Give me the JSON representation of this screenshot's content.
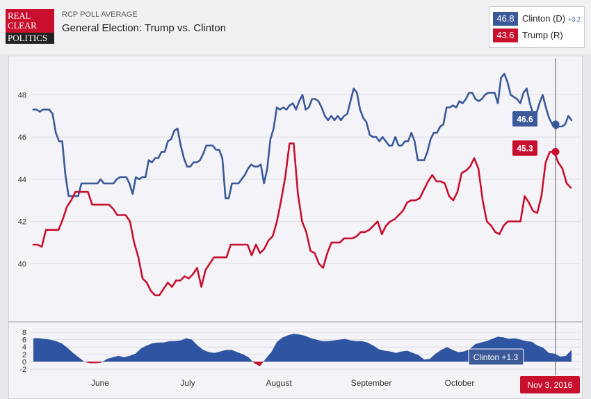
{
  "header": {
    "logo_lines": [
      "REAL",
      "CLEAR",
      "POLITICS"
    ],
    "kicker": "RCP POLL AVERAGE",
    "title": "General Election: Trump vs. Clinton"
  },
  "legend": {
    "clinton": {
      "value": "46.8",
      "name": "Clinton (D)",
      "spread": "+3.2",
      "color": "#3b5998"
    },
    "trump": {
      "value": "43.6",
      "name": "Trump (R)",
      "color": "#c8102e"
    }
  },
  "tooltips": {
    "clinton_value": "46.6",
    "trump_value": "45.3",
    "spread": "Clinton +1.3",
    "date": "Nov 3, 2016"
  },
  "chart_data": {
    "type": "line",
    "title": "General Election: Trump vs. Clinton",
    "y_ticks": [
      "48",
      "46",
      "44",
      "42",
      "40"
    ],
    "ylim": [
      38,
      49.2
    ],
    "spread_ticks": [
      "8",
      "6",
      "4",
      "2",
      "0",
      "-2"
    ],
    "spread_lim": [
      -2,
      8
    ],
    "x_labels": [
      "June",
      "July",
      "August",
      "September",
      "October"
    ],
    "grid": true,
    "series": [
      {
        "name": "Clinton (D)",
        "color": "#3b5998",
        "values": [
          47.3,
          47.3,
          47.2,
          47.3,
          47.3,
          47.3,
          47.1,
          46.2,
          45.8,
          45.8,
          44.2,
          43.2,
          43.2,
          43.2,
          43.2,
          43.8,
          43.8,
          43.8,
          43.8,
          43.8,
          43.8,
          44.0,
          43.8,
          43.8,
          43.8,
          43.8,
          44.0,
          44.1,
          44.1,
          44.1,
          43.8,
          43.3,
          44.1,
          44.0,
          44.1,
          44.1,
          44.9,
          44.8,
          45.0,
          45.0,
          45.3,
          45.3,
          45.8,
          45.9,
          46.3,
          46.4,
          45.6,
          45.0,
          44.6,
          44.6,
          44.8,
          44.8,
          44.9,
          45.2,
          45.6,
          45.6,
          45.6,
          45.4,
          45.4,
          45.0,
          43.1,
          43.1,
          43.8,
          43.8,
          43.8,
          44.0,
          44.2,
          44.5,
          44.7,
          44.6,
          44.6,
          44.7,
          43.8,
          44.5,
          45.9,
          46.4,
          47.4,
          47.3,
          47.4,
          47.3,
          47.5,
          47.6,
          47.3,
          47.7,
          48.0,
          47.3,
          47.4,
          47.8,
          47.8,
          47.7,
          47.4,
          47.0,
          46.8,
          47.0,
          46.8,
          47.0,
          46.8,
          47.0,
          47.1,
          47.7,
          48.3,
          48.1,
          47.3,
          46.9,
          46.7,
          46.1,
          46.0,
          46.0,
          45.8,
          46.0,
          45.8,
          45.6,
          45.6,
          46.0,
          45.6,
          45.6,
          45.8,
          45.8,
          46.2,
          45.8,
          44.9,
          44.9,
          44.9,
          45.3,
          45.9,
          46.2,
          46.2,
          46.5,
          46.6,
          47.4,
          47.4,
          47.5,
          47.4,
          47.7,
          47.6,
          47.8,
          48.1,
          48.1,
          47.8,
          47.7,
          47.8,
          48.0,
          48.1,
          48.1,
          48.1,
          47.6,
          48.8,
          49.0,
          48.6,
          48.0,
          47.9,
          47.8,
          47.6,
          48.1,
          48.3,
          47.6,
          47.1,
          47.1,
          47.6,
          48.0,
          47.4,
          46.9,
          46.6,
          46.4,
          46.5,
          46.5,
          46.6,
          47.0,
          46.8
        ]
      },
      {
        "name": "Trump (R)",
        "color": "#c8102e",
        "values": [
          40.9,
          40.9,
          40.8,
          41.6,
          41.6,
          41.6,
          41.6,
          42.1,
          42.7,
          43.0,
          43.4,
          43.4,
          43.4,
          43.4,
          42.8,
          42.8,
          42.8,
          42.8,
          42.8,
          42.6,
          42.3,
          42.3,
          42.3,
          42.0,
          41.0,
          40.3,
          39.3,
          39.1,
          38.7,
          38.5,
          38.5,
          38.8,
          39.1,
          38.9,
          39.2,
          39.2,
          39.4,
          39.3,
          39.5,
          39.8,
          38.9,
          39.7,
          40.0,
          40.3,
          40.3,
          40.3,
          40.3,
          40.9,
          40.9,
          40.9,
          40.9,
          40.9,
          40.4,
          40.9,
          40.5,
          40.7,
          41.1,
          41.3,
          42.0,
          43.0,
          44.1,
          45.7,
          45.7,
          43.3,
          42.0,
          41.5,
          40.6,
          40.5,
          40.0,
          39.8,
          40.5,
          41.0,
          41.0,
          41.0,
          41.2,
          41.2,
          41.2,
          41.3,
          41.5,
          41.5,
          41.6,
          41.8,
          42.0,
          41.4,
          41.8,
          42.0,
          42.1,
          42.3,
          42.5,
          42.9,
          43.0,
          43.0,
          43.1,
          43.5,
          43.9,
          44.2,
          43.9,
          43.9,
          43.8,
          43.2,
          43.0,
          43.4,
          44.3,
          44.4,
          44.6,
          45.0,
          44.5,
          43.0,
          42.0,
          41.8,
          41.5,
          41.4,
          41.8,
          42.0,
          42.0,
          42.0,
          42.0,
          43.2,
          42.9,
          42.5,
          42.4,
          43.2,
          44.8,
          45.3,
          45.3,
          44.8,
          44.5,
          43.8,
          43.6
        ]
      }
    ],
    "spread_series": {
      "name": "Clinton spread",
      "color": "#2f55a2",
      "values": [
        6.4,
        6.4,
        6.2,
        6.0,
        5.6,
        5.0,
        3.8,
        2.4,
        1.2,
        0.0,
        -0.4,
        -0.4,
        -0.2,
        0.8,
        1.2,
        1.6,
        1.2,
        1.6,
        2.2,
        3.6,
        4.4,
        5.0,
        5.2,
        5.2,
        5.6,
        5.6,
        5.8,
        6.4,
        6.0,
        4.4,
        3.2,
        2.6,
        2.4,
        2.8,
        3.2,
        3.2,
        2.6,
        2.0,
        1.2,
        -0.4,
        -1.2,
        0.8,
        2.6,
        5.4,
        6.6,
        7.2,
        7.6,
        7.4,
        7.0,
        6.4,
        6.0,
        5.6,
        5.6,
        5.8,
        6.0,
        6.2,
        5.8,
        5.6,
        5.6,
        5.2,
        4.4,
        3.4,
        3.0,
        2.8,
        2.4,
        2.8,
        3.0,
        2.4,
        1.8,
        0.6,
        0.8,
        2.2,
        3.2,
        4.0,
        3.2,
        2.6,
        2.8,
        3.4,
        4.8,
        5.2,
        5.6,
        6.2,
        6.8,
        6.6,
        6.2,
        6.4,
        6.0,
        5.6,
        5.4,
        4.4,
        3.8,
        2.4,
        2.2,
        1.4,
        1.6,
        3.2
      ]
    },
    "annotations": [
      "Clinton +1.3",
      "Nov 3, 2016",
      "46.6",
      "45.3"
    ]
  }
}
